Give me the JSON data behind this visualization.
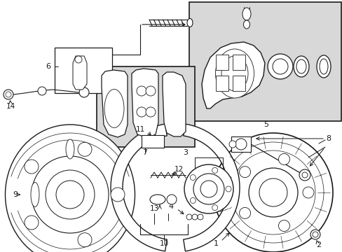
{
  "bg_color": "#ffffff",
  "line_color": "#1a1a1a",
  "box_fill": "#d8d8d8",
  "figsize": [
    4.89,
    3.6
  ],
  "dpi": 100
}
